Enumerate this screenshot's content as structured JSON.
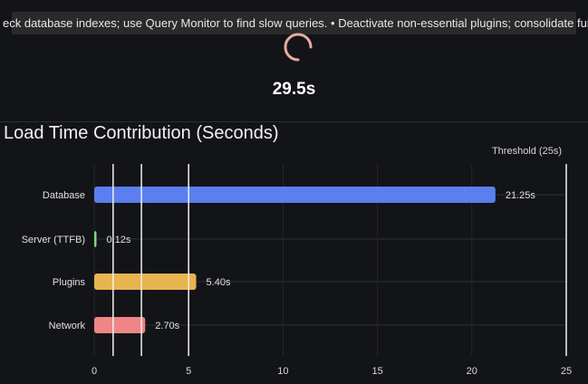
{
  "banner": {
    "text": "eck database indexes; use Query Monitor to find slow queries. • Deactivate non-essential plugins; consolidate functional"
  },
  "status": {
    "value": "29.5s",
    "spinner_color": "#e8aba4"
  },
  "chart_data": {
    "type": "bar",
    "orientation": "horizontal",
    "title": "Load Time Contribution (Seconds)",
    "categories": [
      "Database",
      "Server (TTFB)",
      "Plugins",
      "Network"
    ],
    "values": [
      21.25,
      0.12,
      5.4,
      2.7
    ],
    "data_labels": [
      "21.25s",
      "0.12s",
      "5.40s",
      "2.70s"
    ],
    "colors": [
      "#5b7ef0",
      "#7bd87b",
      "#e8b450",
      "#f08585"
    ],
    "xlim": [
      0,
      25
    ],
    "xticks": [
      0,
      5,
      10,
      15,
      20,
      25
    ],
    "grid": true,
    "reference_lines": [
      {
        "value": 1,
        "label": ""
      },
      {
        "value": 2.5,
        "label": ""
      },
      {
        "value": 5,
        "label": ""
      },
      {
        "value": 25,
        "label": "Threshold (25s)"
      }
    ]
  }
}
